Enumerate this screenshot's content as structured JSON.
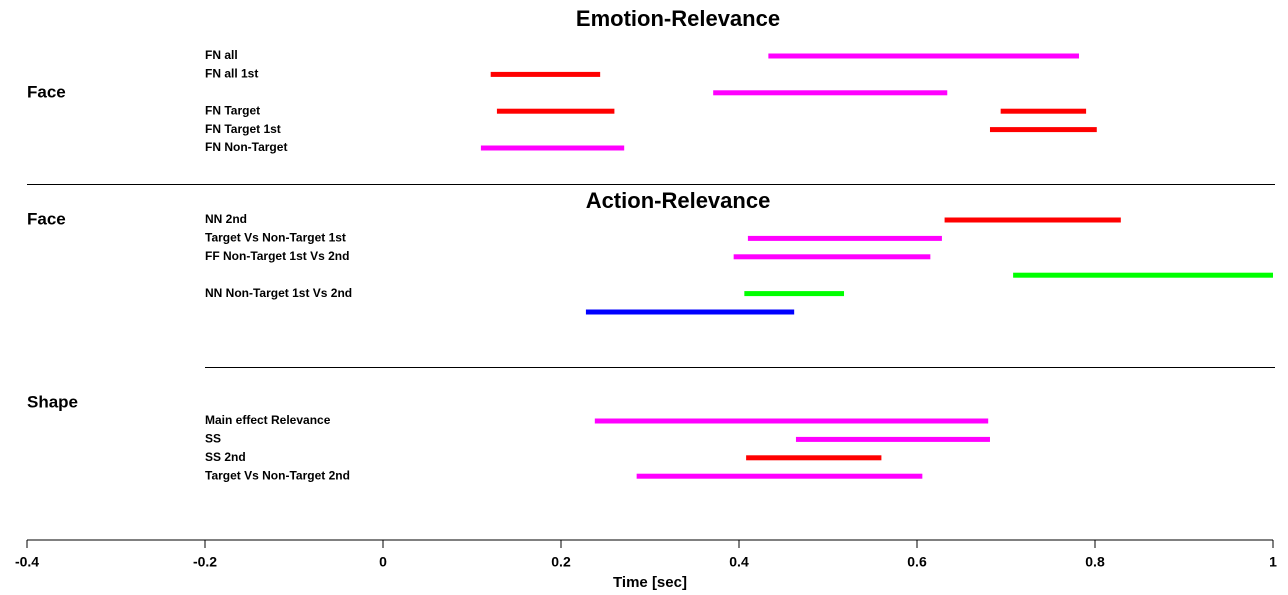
{
  "chart_data": {
    "type": "interval",
    "xlabel": "Time [sec]",
    "xlim": [
      -0.4,
      1
    ],
    "xticks": [
      -0.4,
      -0.2,
      0,
      0.2,
      0.4,
      0.6,
      0.8,
      1
    ],
    "sections": [
      {
        "title": "Emotion-Relevance",
        "group": "Face",
        "rows": [
          {
            "label": "FN all",
            "bars": [
              {
                "values": [
                  0.433,
                  0.782
                ],
                "color": "#ff00ff"
              }
            ]
          },
          {
            "label": "FN all 1st",
            "bars": [
              {
                "values": [
                  0.121,
                  0.244
                ],
                "color": "#ff0000"
              }
            ]
          },
          {
            "label": null,
            "bars": [
              {
                "values": [
                  0.371,
                  0.634
                ],
                "color": "#ff00ff"
              }
            ]
          },
          {
            "label": "FN Target",
            "bars": [
              {
                "values": [
                  0.128,
                  0.26
                ],
                "color": "#ff0000"
              },
              {
                "values": [
                  0.694,
                  0.79
                ],
                "color": "#ff0000"
              }
            ]
          },
          {
            "label": "FN Target 1st",
            "bars": [
              {
                "values": [
                  0.682,
                  0.802
                ],
                "color": "#ff0000"
              }
            ]
          },
          {
            "label": "FN Non-Target",
            "bars": [
              {
                "values": [
                  0.11,
                  0.271
                ],
                "color": "#ff00ff"
              }
            ]
          }
        ]
      },
      {
        "title": "Action-Relevance",
        "group": "Face",
        "rows": [
          {
            "label": "NN 2nd",
            "bars": [
              {
                "values": [
                  0.631,
                  0.829
                ],
                "color": "#ff0000"
              }
            ]
          },
          {
            "label": "Target Vs Non-Target 1st",
            "bars": [
              {
                "values": [
                  0.41,
                  0.628
                ],
                "color": "#ff00ff"
              }
            ]
          },
          {
            "label": "FF Non-Target 1st Vs 2nd",
            "bars": [
              {
                "values": [
                  0.394,
                  0.615
                ],
                "color": "#ff00ff"
              }
            ]
          },
          {
            "label": null,
            "bars": [
              {
                "values": [
                  0.708,
                  1.0
                ],
                "color": "#00ff00"
              }
            ]
          },
          {
            "label": "NN Non-Target 1st Vs 2nd",
            "bars": [
              {
                "values": [
                  0.406,
                  0.518
                ],
                "color": "#00ff00"
              }
            ]
          },
          {
            "label": null,
            "bars": [
              {
                "values": [
                  0.228,
                  0.462
                ],
                "color": "#0000ff"
              }
            ]
          }
        ]
      },
      {
        "group": "Shape",
        "rows": [
          {
            "label": "Main effect Relevance",
            "bars": [
              {
                "values": [
                  0.238,
                  0.68
                ],
                "color": "#ff00ff"
              }
            ]
          },
          {
            "label": "SS",
            "bars": [
              {
                "values": [
                  0.464,
                  0.682
                ],
                "color": "#ff00ff"
              }
            ]
          },
          {
            "label": "SS 2nd",
            "bars": [
              {
                "values": [
                  0.408,
                  0.56
                ],
                "color": "#ff0000"
              }
            ]
          },
          {
            "label": "Target Vs Non-Target 2nd",
            "bars": [
              {
                "values": [
                  0.285,
                  0.606
                ],
                "color": "#ff00ff"
              }
            ]
          }
        ]
      }
    ]
  }
}
